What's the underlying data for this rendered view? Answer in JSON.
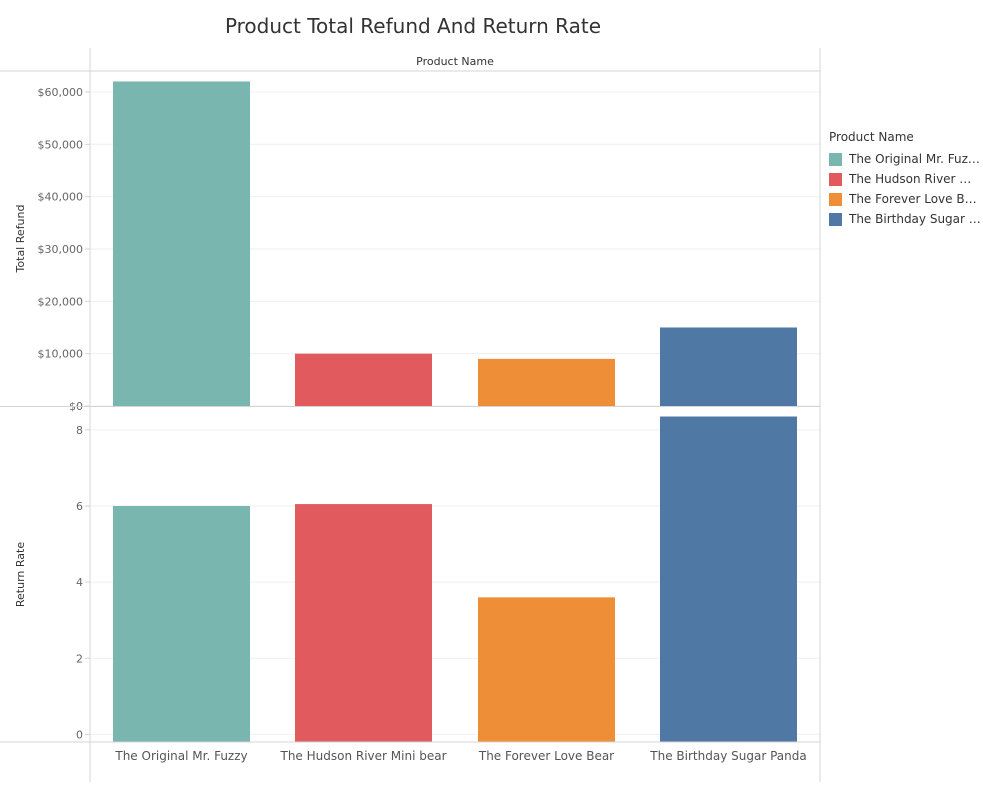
{
  "chart_data": [
    {
      "type": "bar",
      "title": "Product Total Refund And Return Rate",
      "column_header": "Product Name",
      "categories": [
        "The Original Mr. Fuzzy",
        "The Hudson River Mini bear",
        "The Forever Love Bear",
        "The Birthday Sugar Panda"
      ],
      "colors": [
        "#79b6b0",
        "#e05a5e",
        "#ee8f38",
        "#4f78a5"
      ],
      "ylabel": "Total Refund",
      "values": [
        62000,
        10000,
        9000,
        15000
      ],
      "ylim": [
        0,
        64000
      ],
      "yticks": [
        0,
        10000,
        20000,
        30000,
        40000,
        50000,
        60000
      ],
      "ytick_labels": [
        "$0",
        "$10,000",
        "$20,000",
        "$30,000",
        "$40,000",
        "$50,000",
        "$60,000"
      ],
      "grid": true
    },
    {
      "type": "bar",
      "categories": [
        "The Original Mr. Fuzzy",
        "The Hudson River Mini bear",
        "The Forever Love Bear",
        "The Birthday Sugar Panda"
      ],
      "colors": [
        "#79b6b0",
        "#e05a5e",
        "#ee8f38",
        "#4f78a5"
      ],
      "ylabel": "Return Rate",
      "values": [
        6.0,
        6.05,
        3.6,
        8.35
      ],
      "ylim": [
        -0.2,
        8.6
      ],
      "yticks": [
        0,
        2,
        4,
        6,
        8
      ],
      "ytick_labels": [
        "0",
        "2",
        "4",
        "6",
        "8"
      ],
      "grid": true
    }
  ],
  "legend": {
    "title": "Product Name",
    "items": [
      {
        "label": "The Original Mr. Fuzzy",
        "color": "#79b6b0"
      },
      {
        "label": "The Hudson River Mini bear",
        "color": "#e05a5e"
      },
      {
        "label": "The Forever Love Bear",
        "color": "#ee8f38"
      },
      {
        "label": "The Birthday Sugar Panda",
        "color": "#4f78a5"
      }
    ]
  }
}
